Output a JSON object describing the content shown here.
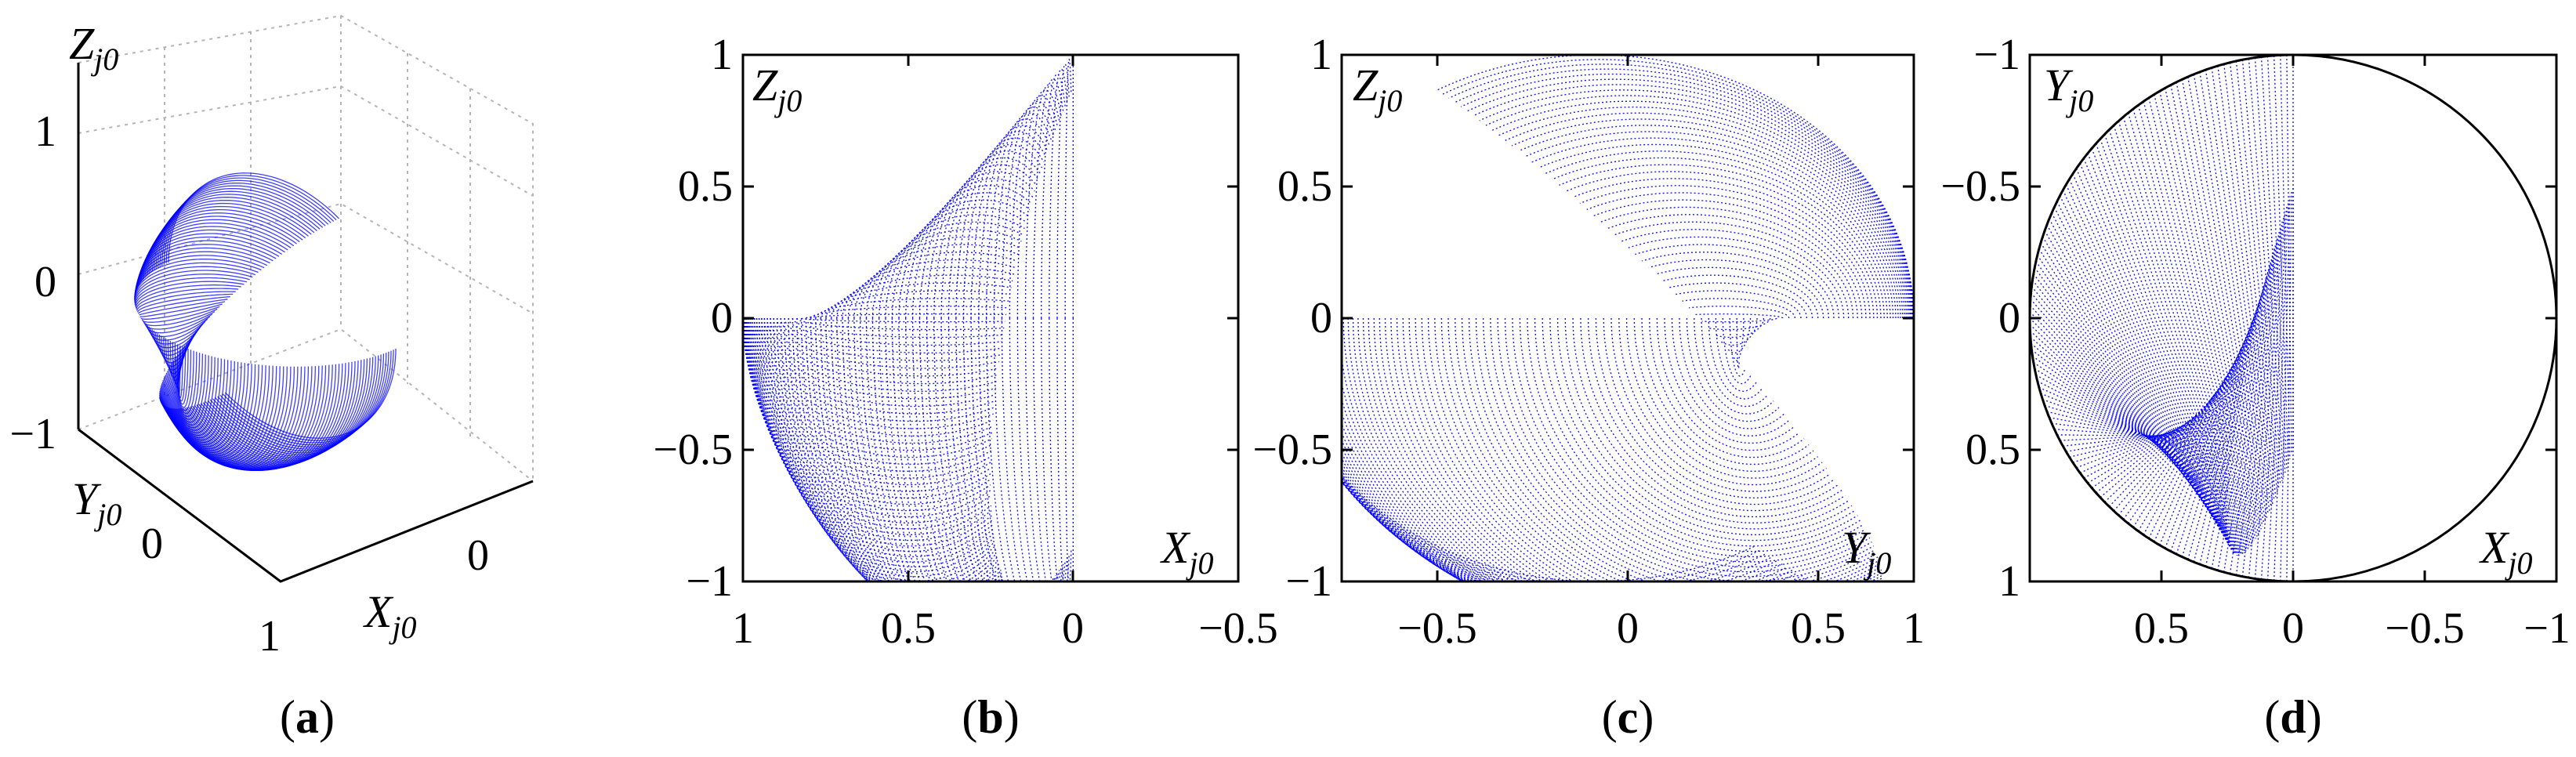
{
  "colors": {
    "surface": "#0000ff",
    "frame": "#000000"
  },
  "chart_data": [
    {
      "type": "scatter",
      "projection": "3d",
      "caption": {
        "pre": "(",
        "letter": "a",
        "post": ")"
      },
      "axis_labels": {
        "x": {
          "base": "X",
          "sub": "j0"
        },
        "y": {
          "base": "Y",
          "sub": "j0"
        },
        "z": {
          "base": "Z",
          "sub": "j0"
        }
      },
      "z_ticks": [
        "1",
        "0",
        "−1"
      ],
      "y_ticks": [
        "0",
        "1"
      ],
      "x_ticks": [
        "0"
      ],
      "zlim": [
        -1,
        1
      ],
      "surface": {
        "x_range": [
          -0.5,
          1
        ],
        "y_range": [
          -0.65,
          1
        ],
        "z_range": [
          -1,
          1
        ]
      }
    },
    {
      "type": "scatter",
      "view": "X-Z",
      "caption": {
        "pre": "(",
        "letter": "b",
        "post": ")"
      },
      "axis_labels": {
        "x": {
          "base": "X",
          "sub": "j0"
        },
        "z": {
          "base": "Z",
          "sub": "j0"
        }
      },
      "x_ticks": [
        "1",
        "0.5",
        "0",
        "−0.5"
      ],
      "y_ticks": [
        "1",
        "0.5",
        "0",
        "−0.5",
        "−1"
      ],
      "xlim": [
        1,
        -0.5
      ],
      "ylim": [
        -1,
        1
      ]
    },
    {
      "type": "scatter",
      "view": "Y-Z",
      "caption": {
        "pre": "(",
        "letter": "c",
        "post": ")"
      },
      "axis_labels": {
        "y": {
          "base": "Y",
          "sub": "j0"
        },
        "z": {
          "base": "Z",
          "sub": "j0"
        }
      },
      "x_ticks": [
        "−0.5",
        "0",
        "0.5",
        "1"
      ],
      "y_ticks": [
        "1",
        "0.5",
        "0",
        "−0.5",
        "−1"
      ],
      "xlim": [
        -0.8,
        1
      ],
      "ylim": [
        -1,
        1
      ]
    },
    {
      "type": "scatter",
      "view": "X-Y",
      "caption": {
        "pre": "(",
        "letter": "d",
        "post": ")"
      },
      "axis_labels": {
        "x": {
          "base": "X",
          "sub": "j0"
        },
        "y": {
          "base": "Y",
          "sub": "j0"
        }
      },
      "x_ticks": [
        "0.5",
        "0",
        "−0.5",
        "−1"
      ],
      "y_ticks": [
        "−1",
        "−0.5",
        "0",
        "0.5",
        "1"
      ],
      "xlim": [
        1,
        -1
      ],
      "ylim": [
        -1,
        1
      ],
      "unit_circle": true
    }
  ]
}
